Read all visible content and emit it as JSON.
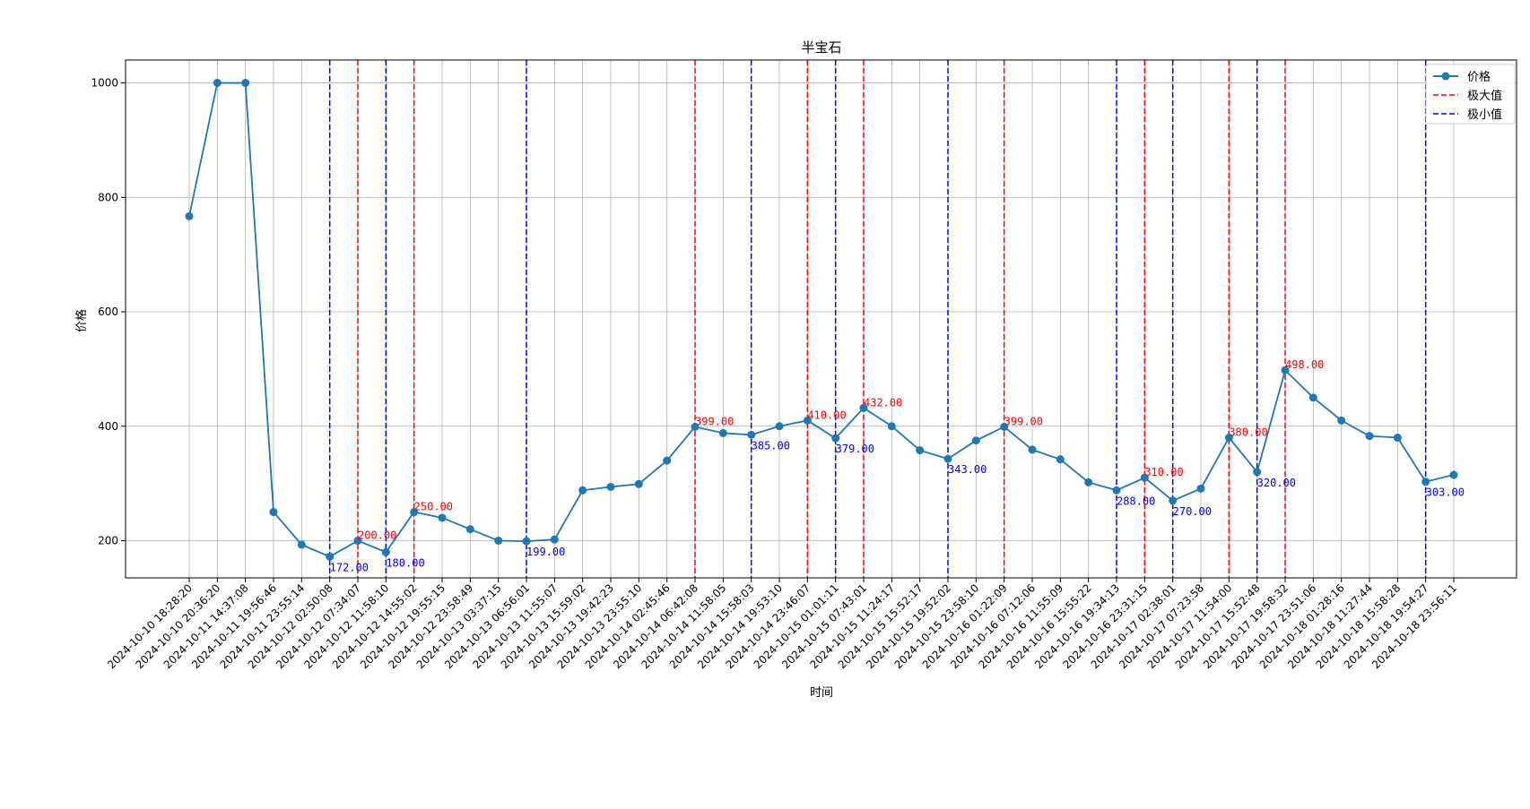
{
  "chart_data": {
    "type": "line",
    "title": "半宝石",
    "xlabel": "时间",
    "ylabel": "价格",
    "ylim": [
      135,
      1040
    ],
    "yticks": [
      200,
      400,
      600,
      800,
      1000
    ],
    "grid": true,
    "legend_position": "top-right",
    "legend": {
      "series_label": "价格",
      "max_label": "极大值",
      "min_label": "极小值"
    },
    "colors": {
      "series": "#1f77b4",
      "max": "#ff0000",
      "min": "#0000ff",
      "grid": "#b0b0b0"
    },
    "x": [
      "2024-10-10 18:28:20",
      "2024-10-10 20:36:20",
      "2024-10-11 14:37:08",
      "2024-10-11 19:56:46",
      "2024-10-11 23:55:14",
      "2024-10-12 02:50:08",
      "2024-10-12 07:34:07",
      "2024-10-12 11:58:10",
      "2024-10-12 14:55:02",
      "2024-10-12 19:55:15",
      "2024-10-12 23:58:49",
      "2024-10-13 03:37:15",
      "2024-10-13 06:56:01",
      "2024-10-13 11:55:07",
      "2024-10-13 15:59:02",
      "2024-10-13 19:42:23",
      "2024-10-13 23:55:10",
      "2024-10-14 02:45:46",
      "2024-10-14 06:42:08",
      "2024-10-14 11:58:05",
      "2024-10-14 15:58:03",
      "2024-10-14 19:53:10",
      "2024-10-14 23:46:07",
      "2024-10-15 01:01:11",
      "2024-10-15 07:43:01",
      "2024-10-15 11:24:17",
      "2024-10-15 15:52:17",
      "2024-10-15 19:52:02",
      "2024-10-15 23:58:10",
      "2024-10-16 01:22:09",
      "2024-10-16 07:12:06",
      "2024-10-16 11:55:09",
      "2024-10-16 15:55:22",
      "2024-10-16 19:34:13",
      "2024-10-16 23:31:15",
      "2024-10-17 02:38:01",
      "2024-10-17 07:23:58",
      "2024-10-17 11:54:00",
      "2024-10-17 15:52:48",
      "2024-10-17 19:58:32",
      "2024-10-17 23:51:06",
      "2024-10-18 01:28:16",
      "2024-10-18 11:27:44",
      "2024-10-18 15:58:28",
      "2024-10-18 19:54:27",
      "2024-10-18 23:56:11"
    ],
    "values": [
      767,
      1000,
      1000,
      250,
      193,
      172,
      200,
      180,
      250,
      240,
      220,
      200,
      199,
      202,
      288,
      294,
      299,
      340,
      399,
      388,
      385,
      400,
      410,
      379,
      432,
      400,
      358,
      343,
      375,
      399,
      359,
      342,
      302,
      288,
      310,
      270,
      291,
      380,
      320,
      498,
      450,
      410,
      383,
      380,
      303,
      315
    ],
    "extrema": [
      {
        "type": "min",
        "index": 5,
        "label": "172.00"
      },
      {
        "type": "max",
        "index": 6,
        "label": "200.00"
      },
      {
        "type": "min",
        "index": 7,
        "label": "180.00"
      },
      {
        "type": "max",
        "index": 8,
        "label": "250.00"
      },
      {
        "type": "min",
        "index": 12,
        "label": "199.00"
      },
      {
        "type": "max",
        "index": 18,
        "label": "399.00"
      },
      {
        "type": "min",
        "index": 20,
        "label": "385.00"
      },
      {
        "type": "max",
        "index": 22,
        "label": "410.00"
      },
      {
        "type": "min",
        "index": 23,
        "label": "379.00"
      },
      {
        "type": "max",
        "index": 24,
        "label": "432.00"
      },
      {
        "type": "min",
        "index": 27,
        "label": "343.00"
      },
      {
        "type": "max",
        "index": 29,
        "label": "399.00"
      },
      {
        "type": "min",
        "index": 33,
        "label": "288.00"
      },
      {
        "type": "max",
        "index": 34,
        "label": "310.00"
      },
      {
        "type": "min",
        "index": 35,
        "label": "270.00"
      },
      {
        "type": "max",
        "index": 37,
        "label": "380.00"
      },
      {
        "type": "min",
        "index": 38,
        "label": "320.00"
      },
      {
        "type": "max",
        "index": 39,
        "label": "498.00"
      },
      {
        "type": "min",
        "index": 44,
        "label": "303.00"
      }
    ]
  }
}
